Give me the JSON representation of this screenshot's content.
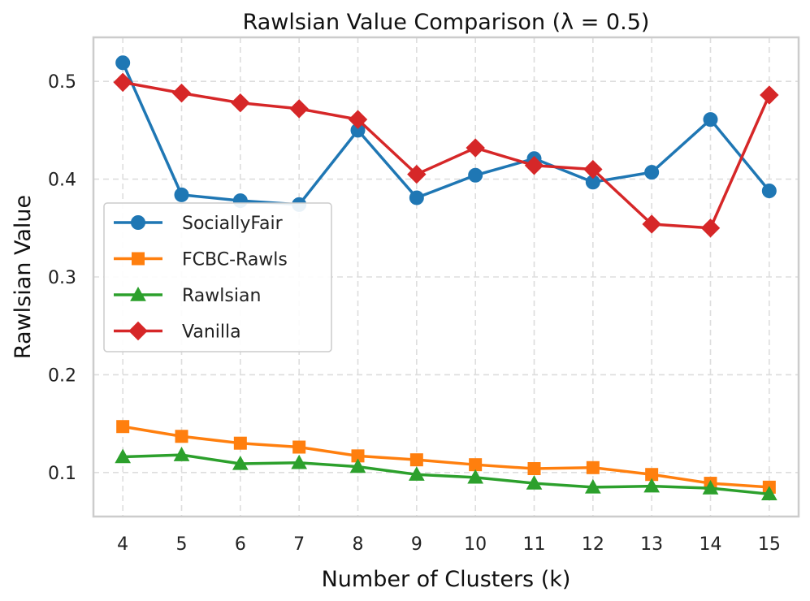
{
  "chart_data": {
    "type": "line",
    "title": "Rawlsian Value Comparison (λ = 0.5)",
    "xlabel": "Number of Clusters (k)",
    "ylabel": "Rawlsian Value",
    "x": [
      4,
      5,
      6,
      7,
      8,
      9,
      10,
      11,
      12,
      13,
      14,
      15
    ],
    "xlim": [
      3.5,
      15.5
    ],
    "ylim": [
      0.055,
      0.545
    ],
    "yticks": [
      0.1,
      0.2,
      0.3,
      0.4,
      0.5
    ],
    "ytick_labels": [
      "0.1",
      "0.2",
      "0.3",
      "0.4",
      "0.5"
    ],
    "grid": true,
    "legend_position": "center-left",
    "series": [
      {
        "name": "SociallyFair",
        "color": "#1f77b4",
        "marker": "circle",
        "values": [
          0.519,
          0.384,
          0.378,
          0.374,
          0.45,
          0.381,
          0.404,
          0.421,
          0.397,
          0.407,
          0.461,
          0.388
        ]
      },
      {
        "name": "FCBC-Rawls",
        "color": "#ff7f0e",
        "marker": "square",
        "values": [
          0.147,
          0.137,
          0.13,
          0.126,
          0.117,
          0.113,
          0.108,
          0.104,
          0.105,
          0.098,
          0.089,
          0.085
        ]
      },
      {
        "name": "Rawlsian",
        "color": "#2ca02c",
        "marker": "triangle",
        "values": [
          0.116,
          0.118,
          0.109,
          0.11,
          0.106,
          0.098,
          0.095,
          0.089,
          0.085,
          0.086,
          0.084,
          0.078
        ]
      },
      {
        "name": "Vanilla",
        "color": "#d62728",
        "marker": "diamond",
        "values": [
          0.499,
          0.488,
          0.478,
          0.472,
          0.461,
          0.405,
          0.432,
          0.414,
          0.41,
          0.354,
          0.35,
          0.486
        ]
      }
    ]
  }
}
